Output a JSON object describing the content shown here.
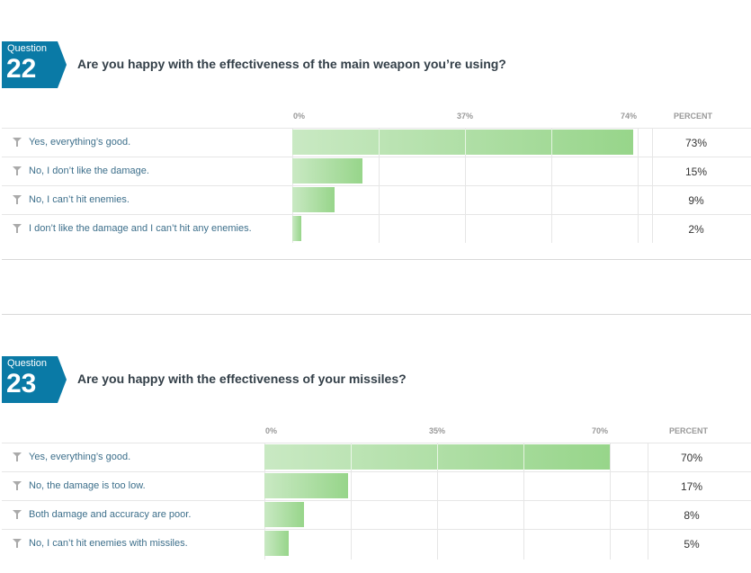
{
  "percent_header": "PERCENT",
  "questions": [
    {
      "label": "Question",
      "number": "22",
      "title": "Are you happy with the effectiveness of the main weapon you’re using?",
      "ticks": [
        "0%",
        "37%",
        "74%"
      ],
      "answers": [
        {
          "label": "Yes, everything’s good.",
          "pct": "73%"
        },
        {
          "label": "No, I don’t like the damage.",
          "pct": "15%"
        },
        {
          "label": "No, I can’t hit enemies.",
          "pct": "9%"
        },
        {
          "label": "I don’t like the damage and I can’t hit any enemies.",
          "pct": "2%"
        }
      ]
    },
    {
      "label": "Question",
      "number": "23",
      "title": "Are you happy with the effectiveness of your missiles?",
      "ticks": [
        "0%",
        "35%",
        "70%"
      ],
      "answers": [
        {
          "label": "Yes, everything’s good.",
          "pct": "70%"
        },
        {
          "label": "No, the damage is too low.",
          "pct": "17%"
        },
        {
          "label": "Both damage and accuracy are poor.",
          "pct": "8%"
        },
        {
          "label": "No, I can’t hit enemies with missiles.",
          "pct": "5%"
        }
      ]
    }
  ],
  "chart_data": [
    {
      "type": "bar",
      "orientation": "horizontal",
      "title": "Are you happy with the effectiveness of the main weapon you’re using?",
      "categories": [
        "Yes, everything’s good.",
        "No, I don’t like the damage.",
        "No, I can’t hit enemies.",
        "I don’t like the damage and I can’t hit any enemies."
      ],
      "values": [
        73,
        15,
        9,
        2
      ],
      "xlim": [
        0,
        74
      ],
      "ticks": [
        0,
        37,
        74
      ],
      "unit": "%",
      "grid": true,
      "bar_color": "#97d58a"
    },
    {
      "type": "bar",
      "orientation": "horizontal",
      "title": "Are you happy with the effectiveness of your missiles?",
      "categories": [
        "Yes, everything’s good.",
        "No, the damage is too low.",
        "Both damage and accuracy are poor.",
        "No, I can’t hit enemies with missiles."
      ],
      "values": [
        70,
        17,
        8,
        5
      ],
      "xlim": [
        0,
        70
      ],
      "ticks": [
        0,
        35,
        70
      ],
      "unit": "%",
      "grid": true,
      "bar_color": "#97d58a"
    }
  ],
  "colors": {
    "badge": "#0a7aa6",
    "badge_dark": "#0b5f82",
    "title": "#333f48",
    "answer_label": "#3d6f8b"
  }
}
